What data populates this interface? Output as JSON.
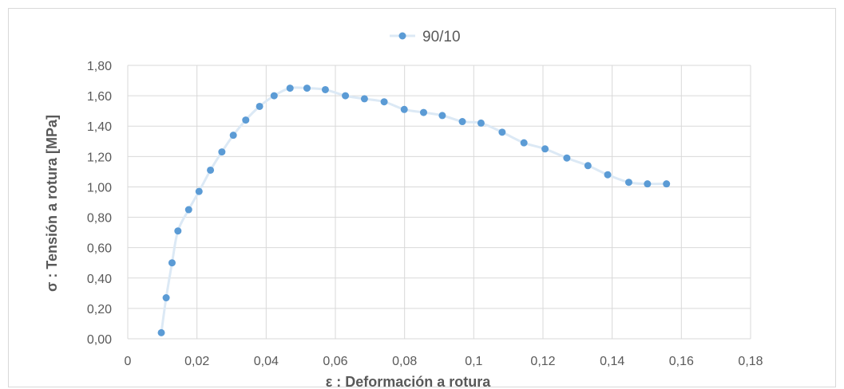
{
  "chart_data": {
    "type": "scatter",
    "title": "",
    "xlabel": "ε : Deformación a rotura",
    "ylabel": "σ : Tensión a rotura [MPa]",
    "xlim": [
      0,
      0.18
    ],
    "ylim": [
      0,
      1.8
    ],
    "x_ticks": [
      "0",
      "0,02",
      "0,04",
      "0,06",
      "0,08",
      "0,1",
      "0,12",
      "0,14",
      "0,16",
      "0,18"
    ],
    "y_ticks": [
      "0,00",
      "0,20",
      "0,40",
      "0,60",
      "0,80",
      "1,00",
      "1,20",
      "1,40",
      "1,60",
      "1,80"
    ],
    "grid": true,
    "legend_position": "top-center",
    "colors": {
      "marker": "#5b9bd5",
      "line": "#dce9f5",
      "grid": "#d9d9d9",
      "text": "#595959"
    },
    "series": [
      {
        "name": "90/10",
        "x": [
          0.0097,
          0.0111,
          0.0128,
          0.0145,
          0.0176,
          0.0206,
          0.0239,
          0.0272,
          0.0305,
          0.0341,
          0.0381,
          0.0423,
          0.0469,
          0.0518,
          0.0571,
          0.0629,
          0.0684,
          0.0741,
          0.0799,
          0.0855,
          0.0909,
          0.0967,
          0.1021,
          0.1082,
          0.1145,
          0.1206,
          0.1269,
          0.133,
          0.1387,
          0.1448,
          0.1502,
          0.1557
        ],
        "y": [
          0.04,
          0.27,
          0.5,
          0.71,
          0.85,
          0.97,
          1.11,
          1.23,
          1.34,
          1.44,
          1.53,
          1.6,
          1.65,
          1.65,
          1.64,
          1.6,
          1.58,
          1.56,
          1.51,
          1.49,
          1.47,
          1.43,
          1.42,
          1.36,
          1.29,
          1.25,
          1.19,
          1.14,
          1.08,
          1.03,
          1.02,
          1.02
        ]
      }
    ]
  }
}
